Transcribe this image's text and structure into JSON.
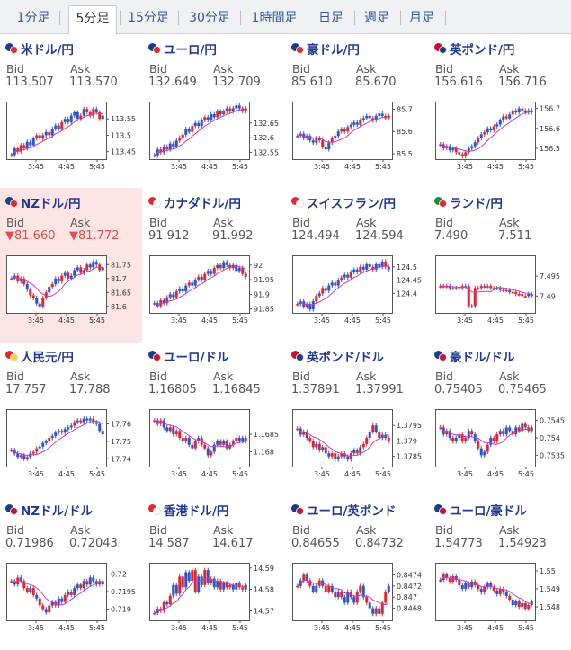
{
  "tabs": [
    "1分足",
    "5分足",
    "15分足",
    "30分足",
    "1時間足",
    "日足",
    "週足",
    "月足"
  ],
  "active_tab": 1,
  "x_ticks": [
    "3:45",
    "4:45",
    "5:45"
  ],
  "labels": {
    "bid": "Bid",
    "ask": "Ask"
  },
  "colors": {
    "title": "#1f3a93",
    "up": "#2b55c9",
    "down": "#e0262e",
    "ma": "#c33fc3",
    "down_text": "#e05050",
    "highlight": "#fce4e4"
  },
  "pairs": [
    {
      "name": "米ドル/円",
      "flag": [
        "#1a3c8f",
        "#e12a2a"
      ],
      "bid": "113.507",
      "ask": "113.570",
      "down": false,
      "highlight": false,
      "yticks": [
        "113.55",
        "113.5",
        "113.45"
      ],
      "ylim": [
        113.43,
        113.6
      ],
      "bars": "110001110101011101111101000101100111001110",
      "series": [
        113.44,
        113.46,
        113.45,
        113.47,
        113.46,
        113.48,
        113.47,
        113.49,
        113.5,
        113.49,
        113.5,
        113.51,
        113.5,
        113.52,
        113.53,
        113.52,
        113.54,
        113.55,
        113.54,
        113.56,
        113.57,
        113.55,
        113.56,
        113.58,
        113.57,
        113.56,
        113.58,
        113.57,
        113.55,
        113.56
      ]
    },
    {
      "name": "ユーロ/円",
      "flag": [
        "#1a3c8f",
        "#e12a2a"
      ],
      "bid": "132.649",
      "ask": "132.709",
      "down": false,
      "highlight": false,
      "yticks": [
        "132.65",
        "132.6",
        "132.55"
      ],
      "ylim": [
        132.53,
        132.72
      ],
      "bars": "110101110011011101110101011100110101011101",
      "series": [
        132.54,
        132.56,
        132.55,
        132.57,
        132.56,
        132.58,
        132.57,
        132.59,
        132.6,
        132.61,
        132.63,
        132.62,
        132.64,
        132.65,
        132.64,
        132.66,
        132.67,
        132.66,
        132.68,
        132.67,
        132.69,
        132.68,
        132.69,
        132.7,
        132.69,
        132.7,
        132.71,
        132.7,
        132.69,
        132.7
      ]
    },
    {
      "name": "豪ドル/円",
      "flag": [
        "#1a3c8f",
        "#e12a2a"
      ],
      "bid": "85.610",
      "ask": "85.670",
      "down": false,
      "highlight": false,
      "yticks": [
        "85.7",
        "85.6",
        "85.5"
      ],
      "ylim": [
        85.48,
        85.73
      ],
      "bars": "011011010110110101110111011100110110011101",
      "series": [
        85.58,
        85.59,
        85.57,
        85.58,
        85.56,
        85.55,
        85.57,
        85.56,
        85.53,
        85.52,
        85.55,
        85.57,
        85.58,
        85.6,
        85.61,
        85.6,
        85.62,
        85.63,
        85.64,
        85.63,
        85.65,
        85.66,
        85.67,
        85.66,
        85.65,
        85.67,
        85.68,
        85.67,
        85.66,
        85.67
      ]
    },
    {
      "name": "英ポンド/円",
      "flag": [
        "#c8102e",
        "#1a3c8f"
      ],
      "bid": "156.616",
      "ask": "156.716",
      "down": false,
      "highlight": false,
      "yticks": [
        "156.7",
        "156.6",
        "156.5"
      ],
      "ylim": [
        156.45,
        156.73
      ],
      "bars": "010110100111010110111010110111011101011101",
      "series": [
        156.52,
        156.5,
        156.51,
        156.49,
        156.5,
        156.48,
        156.47,
        156.46,
        156.48,
        156.5,
        156.51,
        156.53,
        156.55,
        156.57,
        156.58,
        156.6,
        156.59,
        156.61,
        156.62,
        156.64,
        156.66,
        156.65,
        156.67,
        156.69,
        156.68,
        156.7,
        156.69,
        156.68,
        156.69,
        156.68
      ]
    },
    {
      "name": "NZドル/円",
      "flag": [
        "#1a3c8f",
        "#e12a2a"
      ],
      "bid": "81.660",
      "ask": "81.772",
      "down": true,
      "highlight": true,
      "yticks": [
        "81.75",
        "81.7",
        "81.65",
        "81.6"
      ],
      "ylim": [
        81.58,
        81.78
      ],
      "bars": "010101001100101101011101011101110101011101",
      "series": [
        81.7,
        81.71,
        81.69,
        81.7,
        81.68,
        81.66,
        81.64,
        81.63,
        81.61,
        81.6,
        81.63,
        81.65,
        81.67,
        81.68,
        81.7,
        81.69,
        81.71,
        81.72,
        81.7,
        81.71,
        81.73,
        81.74,
        81.72,
        81.73,
        81.75,
        81.74,
        81.76,
        81.75,
        81.73,
        81.74
      ]
    },
    {
      "name": "カナダドル/円",
      "flag": [
        "#e12a2a",
        "#ffffff"
      ],
      "bid": "91.912",
      "ask": "91.992",
      "down": false,
      "highlight": false,
      "yticks": [
        "92",
        "91.95",
        "91.9",
        "91.85"
      ],
      "ylim": [
        91.84,
        92.03
      ],
      "bars": "110101101110110101101011011100110101011001",
      "series": [
        91.87,
        91.86,
        91.88,
        91.87,
        91.89,
        91.9,
        91.89,
        91.91,
        91.92,
        91.91,
        91.93,
        91.94,
        91.93,
        91.95,
        91.96,
        91.95,
        91.97,
        91.98,
        91.97,
        91.99,
        92.0,
        91.99,
        92.01,
        92.0,
        91.99,
        92.0,
        91.98,
        91.99,
        91.97,
        91.96
      ]
    },
    {
      "name": "スイスフラン/円",
      "flag": [
        "#e12a2a",
        "#ffffff"
      ],
      "bid": "124.494",
      "ask": "124.594",
      "down": false,
      "highlight": false,
      "yticks": [
        "124.5",
        "124.45",
        "124.4"
      ],
      "ylim": [
        124.33,
        124.54
      ],
      "bars": "011011010111010110110111011101110101101101",
      "series": [
        124.36,
        124.37,
        124.35,
        124.36,
        124.34,
        124.37,
        124.39,
        124.4,
        124.42,
        124.41,
        124.43,
        124.44,
        124.43,
        124.45,
        124.46,
        124.47,
        124.46,
        124.48,
        124.49,
        124.48,
        124.5,
        124.49,
        124.51,
        124.5,
        124.49,
        124.51,
        124.5,
        124.52,
        124.5,
        124.49
      ]
    },
    {
      "name": "ランド/円",
      "flag": [
        "#1e8a3a",
        "#e12a2a"
      ],
      "bid": "7.490",
      "ask": "7.511",
      "down": false,
      "highlight": false,
      "yticks": [
        "7.495",
        "7.49"
      ],
      "ylim": [
        7.486,
        7.5
      ],
      "bars": "000101001010001000110010000010001000000100",
      "series": [
        7.4925,
        7.4925,
        7.4925,
        7.492,
        7.492,
        7.492,
        7.492,
        7.4925,
        7.4925,
        7.4875,
        7.4875,
        7.492,
        7.492,
        7.4925,
        7.4925,
        7.4925,
        7.492,
        7.492,
        7.492,
        7.4915,
        7.4915,
        7.4915,
        7.491,
        7.491,
        7.4905,
        7.4905,
        7.49,
        7.49,
        7.4905,
        7.49
      ]
    },
    {
      "name": "人民元/円",
      "flag": [
        "#e12a2a",
        "#ffd23f"
      ],
      "bid": "17.757",
      "ask": "17.788",
      "down": false,
      "highlight": false,
      "yticks": [
        "17.76",
        "17.75",
        "17.74"
      ],
      "ylim": [
        17.736,
        17.768
      ],
      "bars": "011010100111011101110101110111011101110110",
      "series": [
        17.745,
        17.743,
        17.741,
        17.742,
        17.74,
        17.741,
        17.743,
        17.744,
        17.746,
        17.747,
        17.749,
        17.75,
        17.752,
        17.753,
        17.755,
        17.756,
        17.755,
        17.757,
        17.758,
        17.759,
        17.761,
        17.762,
        17.761,
        17.763,
        17.762,
        17.763,
        17.761,
        17.76,
        17.756,
        17.754
      ]
    },
    {
      "name": "ユーロ/ドル",
      "flag": [
        "#1a3c8f",
        "#c8102e"
      ],
      "bid": "1.16805",
      "ask": "1.16845",
      "down": false,
      "highlight": false,
      "yticks": [
        "1.1685",
        "1.168"
      ],
      "ylim": [
        1.1676,
        1.1692
      ],
      "bars": "010110100101101001011010100110010110100101",
      "series": [
        1.1689,
        1.1688,
        1.1689,
        1.1687,
        1.1686,
        1.1687,
        1.1685,
        1.1686,
        1.1684,
        1.1683,
        1.1684,
        1.1682,
        1.1681,
        1.1683,
        1.1684,
        1.1682,
        1.1681,
        1.1679,
        1.168,
        1.1682,
        1.1683,
        1.1682,
        1.1683,
        1.1681,
        1.1682,
        1.1683,
        1.1684,
        1.1683,
        1.1684,
        1.1683
      ]
    },
    {
      "name": "英ポンド/ドル",
      "flag": [
        "#c8102e",
        "#1a3c8f"
      ],
      "bid": "1.37891",
      "ask": "1.37991",
      "down": false,
      "highlight": false,
      "yticks": [
        "1.3795",
        "1.379",
        "1.3785"
      ],
      "ylim": [
        1.3782,
        1.38
      ],
      "bars": "010100101010010110101001010110010101011010",
      "series": [
        1.3794,
        1.3792,
        1.3793,
        1.3791,
        1.379,
        1.3788,
        1.3789,
        1.3787,
        1.3788,
        1.3786,
        1.3785,
        1.3786,
        1.3784,
        1.3785,
        1.3786,
        1.3785,
        1.3784,
        1.3786,
        1.3787,
        1.3786,
        1.3788,
        1.3789,
        1.3791,
        1.3793,
        1.3795,
        1.3793,
        1.3791,
        1.3792,
        1.3791,
        1.379
      ]
    },
    {
      "name": "豪ドル/ドル",
      "flag": [
        "#1a3c8f",
        "#c8102e"
      ],
      "bid": "0.75405",
      "ask": "0.75465",
      "down": false,
      "highlight": false,
      "yticks": [
        "0.7545",
        "0.754",
        "0.7535"
      ],
      "ylim": [
        0.7532,
        0.7548
      ],
      "bars": "010101100101011010010110101001011010100101",
      "series": [
        0.7543,
        0.7541,
        0.7542,
        0.754,
        0.7539,
        0.754,
        0.7541,
        0.7539,
        0.754,
        0.7542,
        0.7541,
        0.7539,
        0.7537,
        0.7535,
        0.7536,
        0.7538,
        0.754,
        0.7539,
        0.7541,
        0.7542,
        0.7541,
        0.7543,
        0.7542,
        0.7541,
        0.7543,
        0.7542,
        0.7544,
        0.7543,
        0.7542,
        0.7543
      ]
    },
    {
      "name": "NZドル/ドル",
      "flag": [
        "#1a3c8f",
        "#c8102e"
      ],
      "bid": "0.71986",
      "ask": "0.72043",
      "down": false,
      "highlight": false,
      "yticks": [
        "0.72",
        "0.7195",
        "0.719"
      ],
      "ylim": [
        0.7187,
        0.7203
      ],
      "bars": "010100101001010110101101011101101011010110",
      "series": [
        0.7198,
        0.7197,
        0.7199,
        0.7198,
        0.7196,
        0.7195,
        0.7196,
        0.7194,
        0.7193,
        0.7191,
        0.719,
        0.7189,
        0.7191,
        0.7192,
        0.7191,
        0.7193,
        0.7192,
        0.7194,
        0.7195,
        0.7194,
        0.7196,
        0.7197,
        0.7196,
        0.7198,
        0.7197,
        0.7199,
        0.7198,
        0.7197,
        0.7198,
        0.7197
      ]
    },
    {
      "name": "香港ドル/円",
      "flag": [
        "#e12a2a",
        "#ffffff"
      ],
      "bid": "14.587",
      "ask": "14.617",
      "down": false,
      "highlight": false,
      "yticks": [
        "14.59",
        "14.58",
        "14.57"
      ],
      "ylim": [
        14.566,
        14.592
      ],
      "bars": "010010110011001101011010011001101010110001",
      "series": [
        14.569,
        14.571,
        14.57,
        14.574,
        14.573,
        14.577,
        14.582,
        14.578,
        14.586,
        14.581,
        14.588,
        14.584,
        14.589,
        14.579,
        14.586,
        14.582,
        14.589,
        14.583,
        14.585,
        14.581,
        14.584,
        14.58,
        14.583,
        14.581,
        14.582,
        14.58,
        14.583,
        14.581,
        14.58,
        14.582
      ]
    },
    {
      "name": "ユーロ/英ポンド",
      "flag": [
        "#1a3c8f",
        "#c8102e"
      ],
      "bid": "0.84655",
      "ask": "0.84732",
      "down": false,
      "highlight": false,
      "yticks": [
        "0.8474",
        "0.8472",
        "0.847",
        "0.8468"
      ],
      "ylim": [
        0.8466,
        0.8476
      ],
      "bars": "010101101001010110100101101001011010011010",
      "series": [
        0.8472,
        0.8473,
        0.8474,
        0.8473,
        0.8472,
        0.8471,
        0.8472,
        0.8473,
        0.8472,
        0.8471,
        0.8472,
        0.8471,
        0.847,
        0.8471,
        0.847,
        0.8469,
        0.8471,
        0.847,
        0.8469,
        0.8471,
        0.8472,
        0.847,
        0.8469,
        0.8468,
        0.8467,
        0.8468,
        0.8467,
        0.8469,
        0.8471,
        0.8472
      ]
    },
    {
      "name": "ユーロ/豪ドル",
      "flag": [
        "#1a3c8f",
        "#c8102e"
      ],
      "bid": "1.54773",
      "ask": "1.54923",
      "down": false,
      "highlight": false,
      "yticks": [
        "1.55",
        "1.549",
        "1.548"
      ],
      "ylim": [
        1.5473,
        1.5504
      ],
      "bars": "101001011010010110100101101001010110100101",
      "series": [
        1.5495,
        1.5498,
        1.5496,
        1.5494,
        1.5497,
        1.5495,
        1.5492,
        1.549,
        1.5493,
        1.5491,
        1.5494,
        1.5492,
        1.549,
        1.5488,
        1.5491,
        1.5493,
        1.5491,
        1.5489,
        1.5487,
        1.549,
        1.5488,
        1.5486,
        1.5484,
        1.5481,
        1.5483,
        1.548,
        1.5482,
        1.5479,
        1.5481,
        1.5483
      ]
    }
  ]
}
